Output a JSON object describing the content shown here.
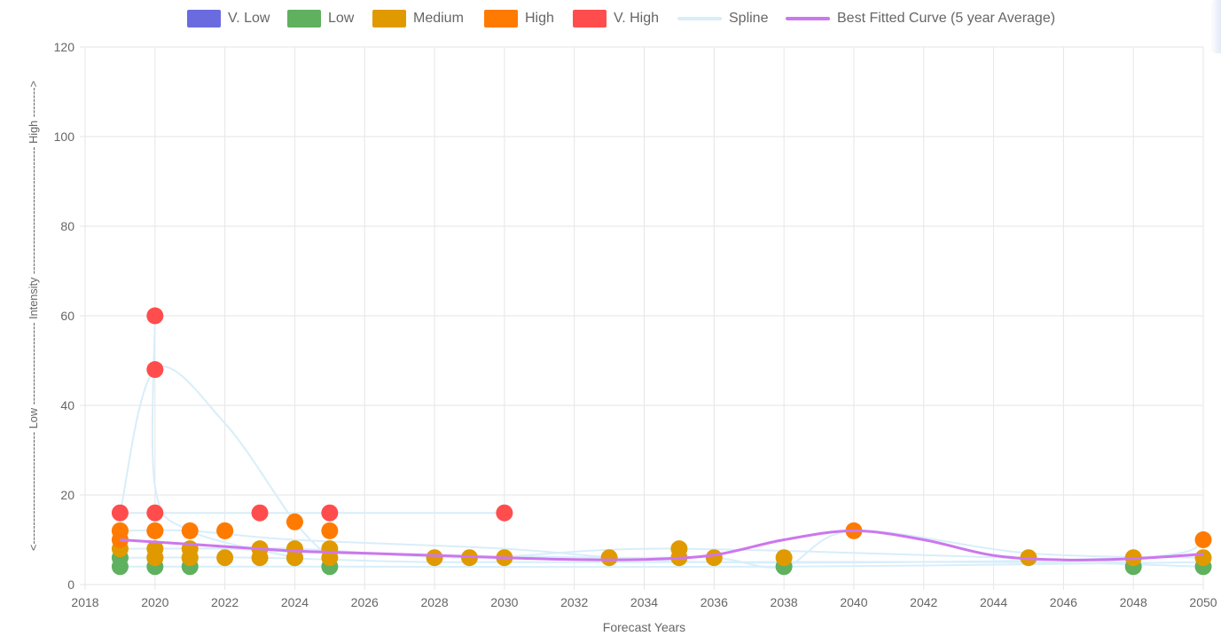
{
  "chart_data": {
    "type": "scatter",
    "title": "",
    "xlabel": "Forecast Years",
    "ylabel": "<------------------------------ Low ---------------------- Intensity ---------------------------------- High -------->",
    "xlim": [
      2018,
      2050
    ],
    "ylim": [
      0,
      120
    ],
    "x_ticks": [
      "2018",
      "2020",
      "2022",
      "2024",
      "2026",
      "2028",
      "2030",
      "2032",
      "2034",
      "2036",
      "2038",
      "2040",
      "2042",
      "2044",
      "2046",
      "2048",
      "2050"
    ],
    "y_ticks": [
      "0",
      "20",
      "40",
      "60",
      "80",
      "100",
      "120"
    ],
    "grid": true,
    "legend_position": "top",
    "legend": [
      {
        "key": "vlow",
        "label": "V. Low",
        "color": "#6b6be0",
        "kind": "box"
      },
      {
        "key": "low",
        "label": "Low",
        "color": "#5fb05f",
        "kind": "box"
      },
      {
        "key": "medium",
        "label": "Medium",
        "color": "#e09a00",
        "kind": "box"
      },
      {
        "key": "high",
        "label": "High",
        "color": "#ff7a00",
        "kind": "box"
      },
      {
        "key": "vhigh",
        "label": "V. High",
        "color": "#ff4d4d",
        "kind": "box"
      },
      {
        "key": "spline",
        "label": "Spline",
        "color": "#d8eefa",
        "kind": "line"
      },
      {
        "key": "fit",
        "label": "Best Fitted Curve (5 year Average)",
        "color": "#cc77ee",
        "kind": "line"
      }
    ],
    "series": [
      {
        "key": "vlow",
        "color": "#6b6be0",
        "points": []
      },
      {
        "key": "low",
        "color": "#5fb05f",
        "points": [
          [
            2019,
            4
          ],
          [
            2019,
            6
          ],
          [
            2020,
            4
          ],
          [
            2020,
            6
          ],
          [
            2021,
            4
          ],
          [
            2021,
            6
          ],
          [
            2024,
            6
          ],
          [
            2025,
            4
          ],
          [
            2038,
            4
          ],
          [
            2048,
            4
          ],
          [
            2050,
            4
          ]
        ]
      },
      {
        "key": "medium",
        "color": "#e09a00",
        "points": [
          [
            2019,
            8
          ],
          [
            2019,
            12
          ],
          [
            2020,
            6
          ],
          [
            2020,
            8
          ],
          [
            2020,
            12
          ],
          [
            2021,
            6
          ],
          [
            2021,
            8
          ],
          [
            2022,
            6
          ],
          [
            2022,
            12
          ],
          [
            2023,
            6
          ],
          [
            2023,
            8
          ],
          [
            2024,
            6
          ],
          [
            2024,
            8
          ],
          [
            2025,
            6
          ],
          [
            2025,
            8
          ],
          [
            2028,
            6
          ],
          [
            2029,
            6
          ],
          [
            2030,
            6
          ],
          [
            2033,
            6
          ],
          [
            2035,
            6
          ],
          [
            2035,
            8
          ],
          [
            2036,
            6
          ],
          [
            2038,
            6
          ],
          [
            2045,
            6
          ],
          [
            2048,
            6
          ],
          [
            2050,
            6
          ]
        ]
      },
      {
        "key": "high",
        "color": "#ff7a00",
        "points": [
          [
            2019,
            10
          ],
          [
            2019,
            12
          ],
          [
            2020,
            12
          ],
          [
            2021,
            12
          ],
          [
            2022,
            12
          ],
          [
            2024,
            14
          ],
          [
            2025,
            12
          ],
          [
            2040,
            12
          ],
          [
            2050,
            10
          ]
        ]
      },
      {
        "key": "vhigh",
        "color": "#ff4d4d",
        "points": [
          [
            2019,
            16
          ],
          [
            2020,
            16
          ],
          [
            2020,
            48
          ],
          [
            2020,
            60
          ],
          [
            2023,
            16
          ],
          [
            2025,
            16
          ],
          [
            2030,
            16
          ]
        ]
      }
    ],
    "spline_lines": [
      [
        [
          2019,
          16
        ],
        [
          2020,
          48
        ],
        [
          2022,
          36
        ],
        [
          2024,
          14
        ],
        [
          2025,
          6
        ]
      ],
      [
        [
          2020,
          60
        ],
        [
          2020,
          22
        ],
        [
          2021,
          12
        ],
        [
          2024,
          6
        ]
      ],
      [
        [
          2019,
          16
        ],
        [
          2020,
          16
        ],
        [
          2025,
          16
        ],
        [
          2030,
          16
        ]
      ],
      [
        [
          2019,
          12
        ],
        [
          2021,
          12
        ],
        [
          2024,
          10
        ],
        [
          2030,
          8
        ],
        [
          2036,
          5
        ],
        [
          2048,
          6
        ],
        [
          2050,
          10
        ]
      ],
      [
        [
          2019,
          8
        ],
        [
          2022,
          8
        ],
        [
          2025,
          7
        ],
        [
          2033,
          6
        ],
        [
          2036,
          6
        ],
        [
          2038,
          4
        ],
        [
          2040,
          12
        ],
        [
          2045,
          7
        ],
        [
          2050,
          6
        ]
      ],
      [
        [
          2019,
          6
        ],
        [
          2023,
          6
        ],
        [
          2028,
          5
        ],
        [
          2035,
          5
        ],
        [
          2045,
          5
        ],
        [
          2050,
          4
        ]
      ],
      [
        [
          2020,
          8
        ],
        [
          2024,
          8
        ],
        [
          2029,
          6
        ],
        [
          2035,
          8
        ],
        [
          2048,
          5
        ]
      ],
      [
        [
          2019,
          4
        ],
        [
          2025,
          4
        ],
        [
          2038,
          4
        ],
        [
          2050,
          5
        ]
      ]
    ],
    "fit_curve": [
      [
        2019,
        10
      ],
      [
        2020,
        9.5
      ],
      [
        2022,
        8.5
      ],
      [
        2024,
        7.5
      ],
      [
        2026,
        7
      ],
      [
        2028,
        6.5
      ],
      [
        2030,
        6
      ],
      [
        2032,
        5.6
      ],
      [
        2034,
        5.6
      ],
      [
        2036,
        6.6
      ],
      [
        2038,
        10
      ],
      [
        2040,
        12
      ],
      [
        2042,
        10
      ],
      [
        2044,
        6.5
      ],
      [
        2046,
        5.5
      ],
      [
        2048,
        5.8
      ],
      [
        2050,
        6.8
      ]
    ]
  }
}
